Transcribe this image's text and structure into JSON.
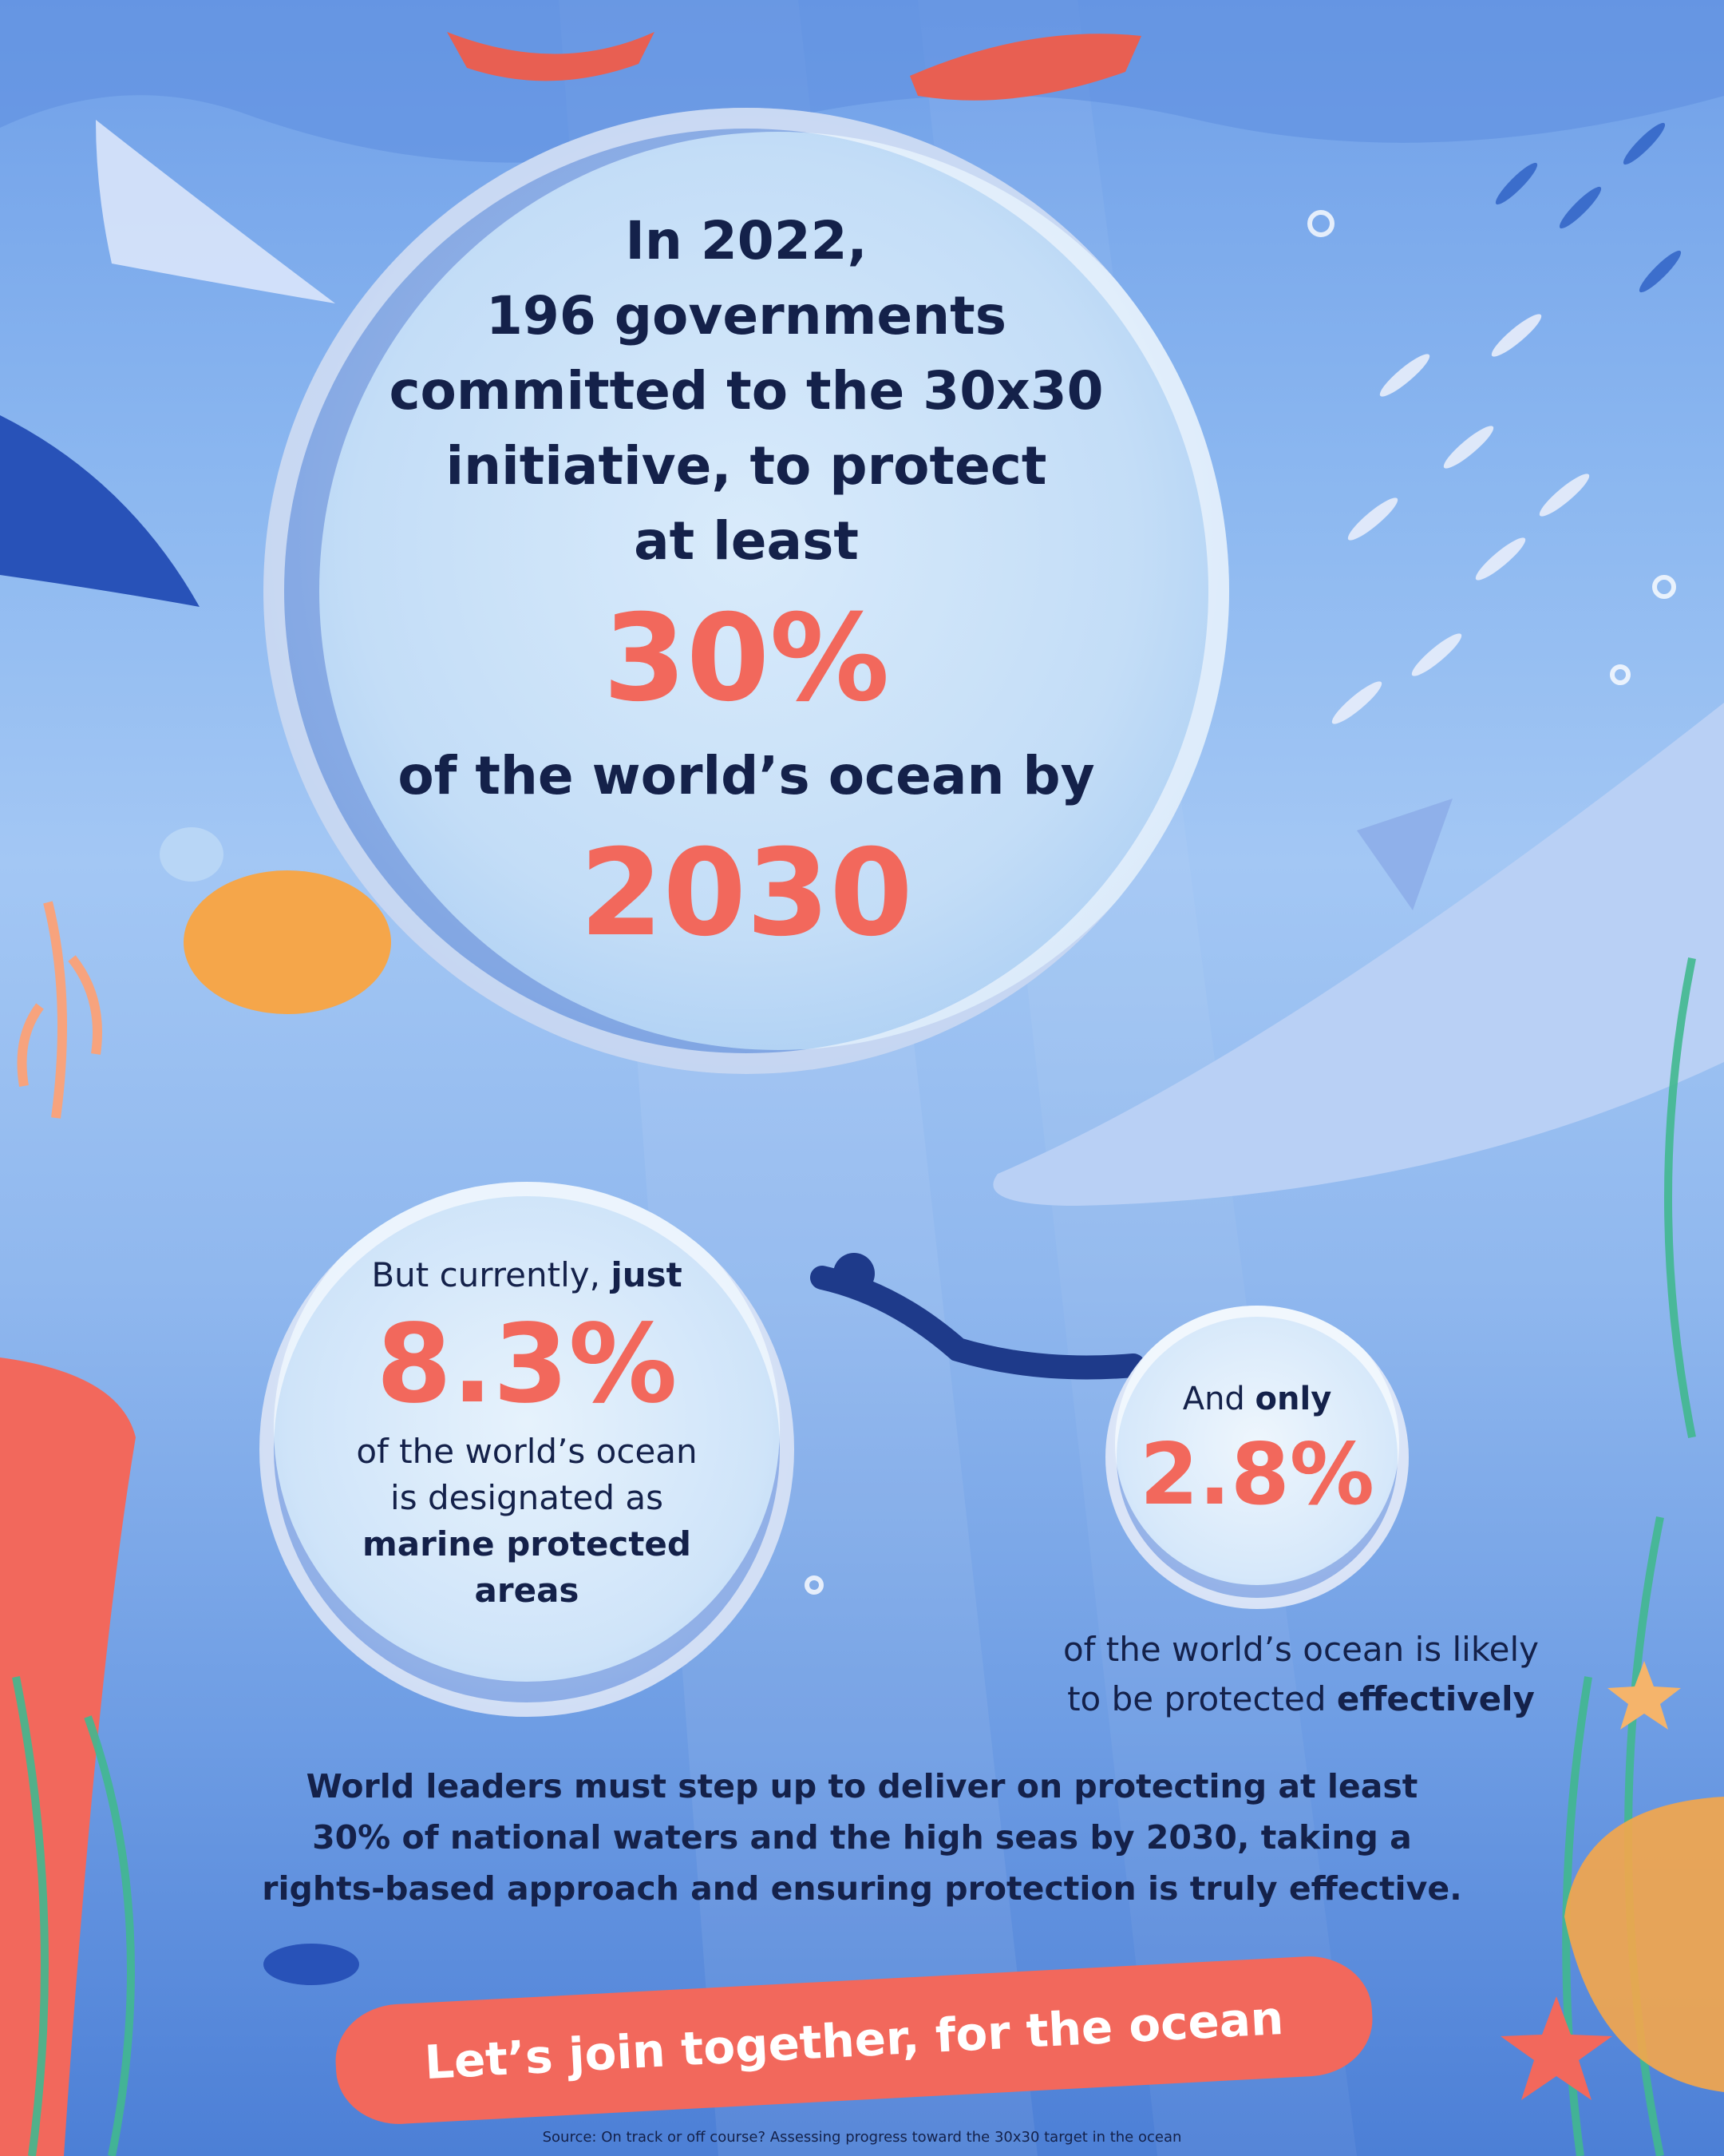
{
  "main": {
    "line1": "In 2022,",
    "line2": "196 governments",
    "line3": "committed to the 30x30",
    "line4": "initiative, to protect",
    "line5": "at least",
    "stat_percent": "30%",
    "line6": "of the world’s ocean by",
    "stat_year": "2030"
  },
  "bubble_one": {
    "intro": "But currently, ",
    "intro_bold": "just",
    "stat": "8.3%",
    "line1": "of the world’s ocean",
    "line2": "is designated as",
    "bold1": "marine protected",
    "bold2": "areas"
  },
  "bubble_two": {
    "intro": "And ",
    "intro_bold": "only",
    "stat": "2.8%",
    "caption1": "of the world’s ocean is likely",
    "caption2": "to be protected ",
    "caption2_bold": "effectively"
  },
  "call": {
    "line1": "World leaders must step up to deliver on protecting at least",
    "line2": "30% of national waters and the high seas by 2030, taking a",
    "line3": "rights-based approach and ensuring protection is truly effective."
  },
  "cta": "Let’s join together, for the ocean",
  "source": "Source: On track or off course? Assessing progress toward the 30x30 target in the ocean",
  "colors": {
    "accent": "#f2685c",
    "text": "#14214a",
    "ocean_light": "#a3c7f4",
    "ocean_deep": "#2c5fc4"
  }
}
